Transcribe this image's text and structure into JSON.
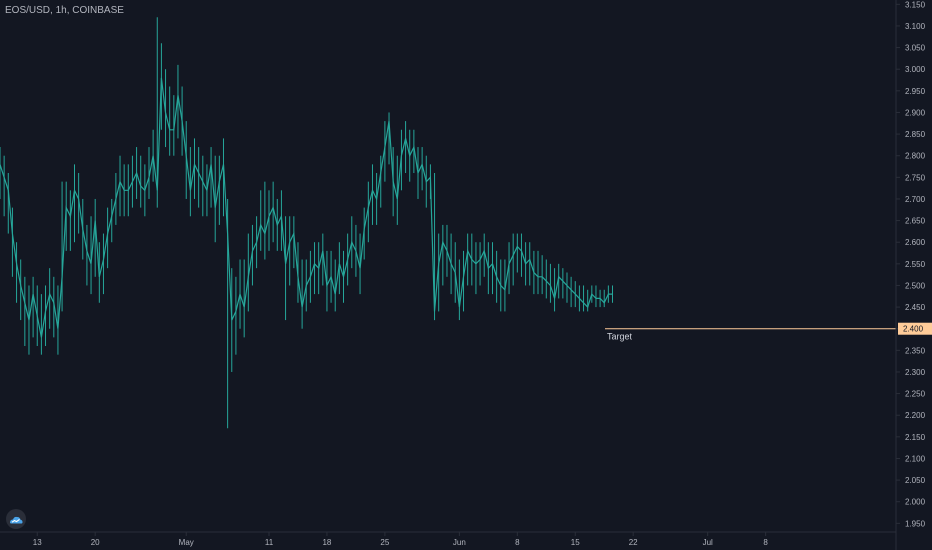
{
  "header": {
    "symbol_title": "EOS/USD, 1h, COINBASE"
  },
  "colors": {
    "background": "#131722",
    "candle": "#26a69a",
    "target_line": "#ffcc99",
    "target_badge": "#ffcc99",
    "axis_text": "#b2b5be",
    "axis_line": "#2a2e39"
  },
  "icons": {
    "logo": "tradingview-cloud-icon"
  },
  "chart_data": {
    "type": "line",
    "ylim": [
      1.93,
      3.16
    ],
    "y_ticks": [
      "3.150",
      "3.100",
      "3.050",
      "3.000",
      "2.950",
      "2.900",
      "2.850",
      "2.800",
      "2.750",
      "2.700",
      "2.650",
      "2.600",
      "2.550",
      "2.500",
      "2.450",
      "2.400",
      "2.350",
      "2.300",
      "2.250",
      "2.200",
      "2.150",
      "2.100",
      "2.050",
      "2.000",
      "1.950"
    ],
    "x_ticks": [
      "13",
      "20",
      "May",
      "11",
      "18",
      "25",
      "Jun",
      "8",
      "15",
      "22",
      "Jul",
      "8"
    ],
    "x_tick_index": [
      0,
      168,
      432,
      672,
      840,
      1008,
      1224,
      1392,
      1560,
      1728,
      1944,
      2112
    ],
    "x_index_range": [
      -108,
      2490
    ],
    "series": [
      {
        "x_index": [
          -108,
          -96,
          -84,
          -72,
          -60,
          -48,
          -36,
          -24,
          -12,
          0,
          12,
          24,
          36,
          48,
          60,
          72,
          84,
          96,
          108,
          120,
          132,
          144,
          156,
          168,
          180,
          192,
          204,
          216,
          228,
          240,
          252,
          264,
          276,
          288,
          300,
          312,
          324,
          336,
          348,
          360,
          372,
          384,
          396,
          408,
          420,
          432,
          444,
          456,
          468,
          480,
          492,
          504,
          516,
          528,
          540,
          552,
          564,
          576,
          588,
          600,
          612,
          624,
          636,
          648,
          660,
          672,
          684,
          696,
          708,
          720,
          732,
          744,
          756,
          768,
          780,
          792,
          804,
          816,
          828,
          840,
          852,
          864,
          876,
          888,
          900,
          912,
          924,
          936,
          948,
          960,
          972,
          984,
          996,
          1008,
          1020,
          1032,
          1044,
          1056,
          1068,
          1080,
          1092,
          1104,
          1116,
          1128,
          1140,
          1152,
          1164,
          1176,
          1188,
          1200,
          1212,
          1224,
          1236,
          1248,
          1260,
          1272,
          1284,
          1296,
          1308,
          1320,
          1332,
          1344,
          1356,
          1368,
          1380,
          1392,
          1404,
          1416,
          1428,
          1440,
          1452,
          1464,
          1476,
          1488,
          1500,
          1512,
          1524,
          1536,
          1548,
          1560,
          1572,
          1584,
          1596,
          1608,
          1620,
          1632,
          1644,
          1656,
          1668
        ],
        "close": [
          2.78,
          2.75,
          2.72,
          2.62,
          2.55,
          2.5,
          2.46,
          2.42,
          2.48,
          2.43,
          2.38,
          2.44,
          2.48,
          2.46,
          2.4,
          2.52,
          2.68,
          2.66,
          2.72,
          2.7,
          2.63,
          2.58,
          2.55,
          2.65,
          2.52,
          2.56,
          2.62,
          2.66,
          2.7,
          2.74,
          2.72,
          2.72,
          2.74,
          2.76,
          2.73,
          2.72,
          2.75,
          2.8,
          2.72,
          2.98,
          2.9,
          2.86,
          2.86,
          2.94,
          2.88,
          2.8,
          2.72,
          2.78,
          2.76,
          2.74,
          2.72,
          2.78,
          2.68,
          2.74,
          2.78,
          2.62,
          2.42,
          2.44,
          2.48,
          2.45,
          2.52,
          2.58,
          2.6,
          2.64,
          2.62,
          2.66,
          2.68,
          2.64,
          2.66,
          2.55,
          2.6,
          2.62,
          2.52,
          2.45,
          2.5,
          2.52,
          2.55,
          2.54,
          2.58,
          2.5,
          2.52,
          2.48,
          2.55,
          2.52,
          2.56,
          2.6,
          2.58,
          2.54,
          2.63,
          2.68,
          2.72,
          2.7,
          2.76,
          2.82,
          2.88,
          2.74,
          2.7,
          2.8,
          2.84,
          2.8,
          2.82,
          2.76,
          2.78,
          2.74,
          2.75,
          2.44,
          2.55,
          2.6,
          2.58,
          2.55,
          2.53,
          2.45,
          2.52,
          2.58,
          2.56,
          2.55,
          2.56,
          2.58,
          2.54,
          2.55,
          2.52,
          2.5,
          2.49,
          2.55,
          2.57,
          2.59,
          2.58,
          2.55,
          2.56,
          2.53,
          2.52,
          2.52,
          2.51,
          2.5,
          2.47,
          2.52,
          2.51,
          2.5,
          2.49,
          2.48,
          2.47,
          2.46,
          2.45,
          2.48,
          2.47,
          2.47,
          2.46,
          2.48,
          2.48
        ],
        "high": [
          2.82,
          2.8,
          2.76,
          2.68,
          2.6,
          2.56,
          2.52,
          2.5,
          2.52,
          2.5,
          2.48,
          2.5,
          2.54,
          2.52,
          2.5,
          2.74,
          2.74,
          2.72,
          2.78,
          2.76,
          2.7,
          2.64,
          2.66,
          2.7,
          2.6,
          2.62,
          2.68,
          2.7,
          2.76,
          2.8,
          2.78,
          2.78,
          2.8,
          2.82,
          2.8,
          2.78,
          2.82,
          2.86,
          3.12,
          3.06,
          3.0,
          2.96,
          2.94,
          3.01,
          2.96,
          2.88,
          2.82,
          2.84,
          2.82,
          2.8,
          2.78,
          2.82,
          2.8,
          2.8,
          2.84,
          2.7,
          2.54,
          2.52,
          2.56,
          2.56,
          2.62,
          2.64,
          2.66,
          2.72,
          2.74,
          2.72,
          2.74,
          2.7,
          2.72,
          2.66,
          2.66,
          2.66,
          2.6,
          2.56,
          2.56,
          2.58,
          2.6,
          2.6,
          2.62,
          2.58,
          2.58,
          2.56,
          2.6,
          2.58,
          2.62,
          2.66,
          2.64,
          2.62,
          2.68,
          2.74,
          2.78,
          2.76,
          2.8,
          2.88,
          2.9,
          2.82,
          2.8,
          2.86,
          2.88,
          2.86,
          2.86,
          2.82,
          2.82,
          2.8,
          2.78,
          2.76,
          2.62,
          2.64,
          2.64,
          2.62,
          2.6,
          2.56,
          2.58,
          2.62,
          2.62,
          2.6,
          2.6,
          2.62,
          2.6,
          2.6,
          2.58,
          2.56,
          2.56,
          2.6,
          2.62,
          2.62,
          2.62,
          2.6,
          2.6,
          2.58,
          2.58,
          2.57,
          2.56,
          2.55,
          2.54,
          2.55,
          2.54,
          2.53,
          2.52,
          2.51,
          2.5,
          2.5,
          2.49,
          2.5,
          2.5,
          2.49,
          2.49,
          2.5,
          2.5
        ],
        "low": [
          2.7,
          2.66,
          2.62,
          2.52,
          2.46,
          2.42,
          2.36,
          2.34,
          2.38,
          2.36,
          2.34,
          2.36,
          2.4,
          2.38,
          2.34,
          2.44,
          2.58,
          2.58,
          2.6,
          2.62,
          2.56,
          2.5,
          2.48,
          2.52,
          2.46,
          2.48,
          2.54,
          2.6,
          2.64,
          2.66,
          2.66,
          2.66,
          2.68,
          2.7,
          2.68,
          2.66,
          2.7,
          2.74,
          2.68,
          2.86,
          2.82,
          2.8,
          2.8,
          2.84,
          2.8,
          2.7,
          2.66,
          2.7,
          2.68,
          2.66,
          2.66,
          2.68,
          2.6,
          2.64,
          2.66,
          2.17,
          2.3,
          2.34,
          2.4,
          2.38,
          2.44,
          2.5,
          2.54,
          2.58,
          2.56,
          2.58,
          2.6,
          2.58,
          2.58,
          2.42,
          2.5,
          2.54,
          2.46,
          2.4,
          2.44,
          2.46,
          2.48,
          2.48,
          2.5,
          2.44,
          2.46,
          2.44,
          2.48,
          2.46,
          2.5,
          2.54,
          2.52,
          2.48,
          2.56,
          2.6,
          2.64,
          2.64,
          2.68,
          2.74,
          2.78,
          2.66,
          2.64,
          2.72,
          2.76,
          2.74,
          2.76,
          2.7,
          2.72,
          2.68,
          2.7,
          2.42,
          2.44,
          2.5,
          2.52,
          2.48,
          2.46,
          2.42,
          2.44,
          2.5,
          2.5,
          2.48,
          2.5,
          2.52,
          2.48,
          2.48,
          2.46,
          2.44,
          2.44,
          2.48,
          2.5,
          2.53,
          2.52,
          2.5,
          2.5,
          2.48,
          2.48,
          2.48,
          2.47,
          2.46,
          2.44,
          2.47,
          2.47,
          2.46,
          2.45,
          2.45,
          2.44,
          2.44,
          2.44,
          2.46,
          2.45,
          2.45,
          2.45,
          2.46,
          2.46
        ]
      }
    ],
    "hline": {
      "value": 2.4,
      "label": "Target",
      "price_label": "2.400"
    },
    "grid": false
  }
}
